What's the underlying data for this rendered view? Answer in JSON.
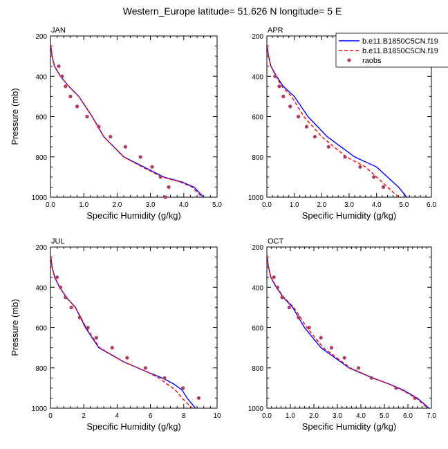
{
  "title": "Western_Europe  latitude= 51.626 N longitude= 5 E",
  "colors": {
    "case1": "#0000ff",
    "case2": "#ff0000",
    "obs": "#b03a60"
  },
  "legend": {
    "placement": "top-right",
    "entries": [
      "b.e11.B1850C5CN.f19",
      "b.e11.B1850C5CN.f19",
      "raobs"
    ]
  },
  "chart_data": [
    {
      "type": "line",
      "title": "JAN",
      "xlabel": "Specific Humidity (g/kg)",
      "ylabel": "Pressure (mb)",
      "xlim": [
        0,
        5
      ],
      "ylim": [
        1000,
        200
      ],
      "xticks": [
        "0.0",
        "1.0",
        "2.0",
        "3.0",
        "4.0",
        "5.0"
      ],
      "yticks": [
        "200",
        "400",
        "600",
        "800",
        "1000"
      ],
      "series": [
        {
          "x": [
            0.0,
            0.05,
            0.12,
            0.3,
            0.55,
            0.85,
            1.25,
            1.6,
            2.2,
            2.8,
            3.4,
            3.95,
            4.3,
            4.6
          ],
          "y": [
            240,
            300,
            350,
            400,
            450,
            500,
            600,
            700,
            800,
            850,
            900,
            925,
            950,
            1000
          ]
        },
        {
          "x": [
            0.0,
            0.05,
            0.12,
            0.3,
            0.55,
            0.85,
            1.25,
            1.6,
            2.2,
            2.75,
            3.35,
            3.9,
            4.25,
            4.55
          ],
          "y": [
            240,
            300,
            350,
            400,
            450,
            500,
            600,
            700,
            800,
            850,
            900,
            925,
            950,
            1000
          ]
        }
      ],
      "obs": {
        "x": [
          0.25,
          0.35,
          0.45,
          0.6,
          0.8,
          1.1,
          1.45,
          1.8,
          2.25,
          2.7,
          3.05,
          3.3,
          3.55,
          3.45
        ],
        "y": [
          350,
          400,
          450,
          500,
          550,
          600,
          650,
          700,
          750,
          800,
          850,
          900,
          950,
          1000
        ]
      }
    },
    {
      "type": "line",
      "title": "APR",
      "xlabel": "Specific Humidity (g/kg)",
      "ylabel": "",
      "xlim": [
        0,
        6
      ],
      "ylim": [
        1000,
        200
      ],
      "xticks": [
        "0.0",
        "1.0",
        "2.0",
        "3.0",
        "4.0",
        "5.0",
        "6.0"
      ],
      "yticks": [
        "200",
        "400",
        "600",
        "800",
        "1000"
      ],
      "series": [
        {
          "x": [
            0.0,
            0.06,
            0.15,
            0.35,
            0.6,
            1.0,
            1.5,
            2.2,
            3.2,
            4.0,
            4.4,
            4.8,
            5.1
          ],
          "y": [
            240,
            300,
            350,
            400,
            450,
            500,
            600,
            700,
            800,
            850,
            900,
            950,
            1000
          ]
        },
        {
          "x": [
            0.0,
            0.06,
            0.15,
            0.33,
            0.55,
            0.9,
            1.35,
            2.0,
            2.9,
            3.6,
            4.0,
            4.4,
            4.8
          ],
          "y": [
            240,
            300,
            350,
            400,
            450,
            500,
            600,
            700,
            800,
            850,
            900,
            950,
            1000
          ]
        }
      ],
      "obs": {
        "x": [
          0.3,
          0.45,
          0.6,
          0.85,
          1.15,
          1.45,
          1.75,
          2.25,
          2.85,
          3.4,
          3.9,
          4.25
        ],
        "y": [
          400,
          450,
          500,
          550,
          600,
          650,
          700,
          750,
          800,
          850,
          900,
          950
        ]
      }
    },
    {
      "type": "line",
      "title": "JUL",
      "xlabel": "Specific Humidity (g/kg)",
      "ylabel": "Pressure (mb)",
      "xlim": [
        0,
        10
      ],
      "ylim": [
        1000,
        200
      ],
      "xticks": [
        "0",
        "2",
        "4",
        "6",
        "8",
        "10"
      ],
      "yticks": [
        "200",
        "400",
        "600",
        "800",
        "1000"
      ],
      "series": [
        {
          "x": [
            0.0,
            0.1,
            0.25,
            0.55,
            0.95,
            1.5,
            2.1,
            2.9,
            4.4,
            5.8,
            6.7,
            7.4,
            7.9,
            8.2,
            8.7
          ],
          "y": [
            240,
            300,
            350,
            400,
            450,
            500,
            600,
            700,
            770,
            820,
            850,
            880,
            910,
            950,
            1000
          ]
        },
        {
          "x": [
            0.0,
            0.1,
            0.25,
            0.55,
            0.95,
            1.5,
            2.15,
            2.95,
            4.4,
            5.8,
            6.5,
            7.0,
            7.5,
            7.9,
            8.5
          ],
          "y": [
            240,
            300,
            350,
            400,
            450,
            500,
            600,
            700,
            770,
            820,
            850,
            880,
            910,
            950,
            1000
          ]
        }
      ],
      "obs": {
        "x": [
          0.4,
          0.6,
          0.9,
          1.25,
          1.75,
          2.25,
          2.75,
          3.7,
          4.6,
          5.7,
          6.85,
          7.95,
          8.9
        ],
        "y": [
          350,
          400,
          450,
          500,
          550,
          600,
          650,
          700,
          750,
          800,
          850,
          900,
          950
        ]
      }
    },
    {
      "type": "line",
      "title": "OCT",
      "xlabel": "Specific Humidity (g/kg)",
      "ylabel": "",
      "xlim": [
        0,
        7
      ],
      "ylim": [
        1000,
        200
      ],
      "xticks": [
        "0.0",
        "1.0",
        "2.0",
        "3.0",
        "4.0",
        "5.0",
        "6.0",
        "7.0"
      ],
      "yticks": [
        "200",
        "400",
        "600",
        "800",
        "1000"
      ],
      "series": [
        {
          "x": [
            0.0,
            0.07,
            0.17,
            0.4,
            0.7,
            1.1,
            1.6,
            2.3,
            3.5,
            4.5,
            5.2,
            5.8,
            6.4,
            6.9
          ],
          "y": [
            240,
            300,
            350,
            400,
            450,
            500,
            600,
            700,
            800,
            850,
            880,
            910,
            950,
            1000
          ]
        },
        {
          "x": [
            0.0,
            0.07,
            0.17,
            0.42,
            0.72,
            1.15,
            1.7,
            2.4,
            3.55,
            4.5,
            5.2,
            5.75,
            6.35,
            6.85
          ],
          "y": [
            240,
            300,
            350,
            400,
            450,
            500,
            600,
            700,
            800,
            850,
            880,
            910,
            950,
            1000
          ]
        }
      ],
      "obs": {
        "x": [
          0.3,
          0.45,
          0.65,
          0.95,
          1.35,
          1.8,
          2.3,
          2.75,
          3.3,
          3.9,
          4.45,
          5.5,
          6.3
        ],
        "y": [
          350,
          400,
          450,
          500,
          550,
          600,
          650,
          700,
          750,
          800,
          850,
          900,
          950
        ]
      }
    }
  ]
}
